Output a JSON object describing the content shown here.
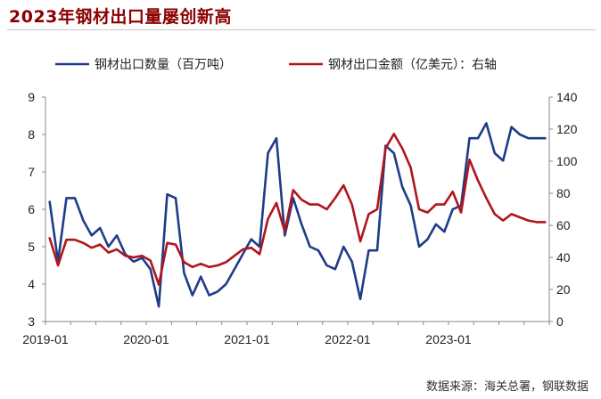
{
  "title": "2023年钢材出口量屡创新高",
  "source": "数据来源：海关总署，钢联数据",
  "chart_data": {
    "type": "line",
    "x": [
      "2019-01",
      "2019-02",
      "2019-03",
      "2019-04",
      "2019-05",
      "2019-06",
      "2019-07",
      "2019-08",
      "2019-09",
      "2019-10",
      "2019-11",
      "2019-12",
      "2020-01",
      "2020-02",
      "2020-03",
      "2020-04",
      "2020-05",
      "2020-06",
      "2020-07",
      "2020-08",
      "2020-09",
      "2020-10",
      "2020-11",
      "2020-12",
      "2021-01",
      "2021-02",
      "2021-03",
      "2021-04",
      "2021-05",
      "2021-06",
      "2021-07",
      "2021-08",
      "2021-09",
      "2021-10",
      "2021-11",
      "2021-12",
      "2022-01",
      "2022-02",
      "2022-03",
      "2022-04",
      "2022-05",
      "2022-06",
      "2022-07",
      "2022-08",
      "2022-09",
      "2022-10",
      "2022-11",
      "2022-12",
      "2023-01",
      "2023-02",
      "2023-03",
      "2023-04",
      "2023-05",
      "2023-06",
      "2023-07",
      "2023-08",
      "2023-09",
      "2023-10",
      "2023-11",
      "2023-12"
    ],
    "x_tick_labels": [
      "2019-01",
      "2020-01",
      "2021-01",
      "2022-01",
      "2023-01"
    ],
    "series": [
      {
        "name": "钢材出口数量（百万吨）",
        "axis": "left",
        "color": "#1f3c88",
        "values": [
          6.2,
          4.6,
          6.3,
          6.3,
          5.7,
          5.3,
          5.5,
          5.0,
          5.3,
          4.8,
          4.6,
          4.7,
          4.4,
          3.4,
          6.4,
          6.3,
          4.3,
          3.7,
          4.2,
          3.7,
          3.8,
          4.0,
          4.4,
          4.8,
          5.2,
          5.0,
          7.5,
          7.9,
          5.3,
          6.3,
          5.6,
          5.0,
          4.9,
          4.5,
          4.4,
          5.0,
          4.6,
          3.6,
          4.9,
          4.9,
          7.7,
          7.5,
          6.6,
          6.1,
          5.0,
          5.2,
          5.6,
          5.4,
          6.0,
          6.1,
          7.9,
          7.9,
          8.3,
          7.5,
          7.3,
          8.2,
          8.0,
          7.9,
          7.9,
          7.9
        ]
      },
      {
        "name": "钢材出口金额（亿美元）：右轴",
        "axis": "right",
        "color": "#b0151c",
        "values": [
          52,
          35,
          51,
          51,
          49,
          46,
          48,
          43,
          45,
          41,
          40,
          41,
          38,
          23,
          49,
          48,
          37,
          34,
          36,
          34,
          35,
          37,
          41,
          45,
          46,
          42,
          64,
          74,
          56,
          82,
          76,
          73,
          73,
          70,
          77,
          85,
          73,
          50,
          67,
          70,
          108,
          117,
          108,
          96,
          70,
          68,
          73,
          73,
          81,
          68,
          101,
          88,
          77,
          67,
          63,
          67,
          65,
          63,
          62,
          62
        ]
      }
    ],
    "y_left": {
      "min": 3,
      "max": 9,
      "ticks": [
        3,
        4,
        5,
        6,
        7,
        8,
        9
      ]
    },
    "y_right": {
      "min": 0,
      "max": 140,
      "ticks": [
        0,
        20,
        40,
        60,
        80,
        100,
        120,
        140
      ]
    },
    "legend_position": "top"
  }
}
